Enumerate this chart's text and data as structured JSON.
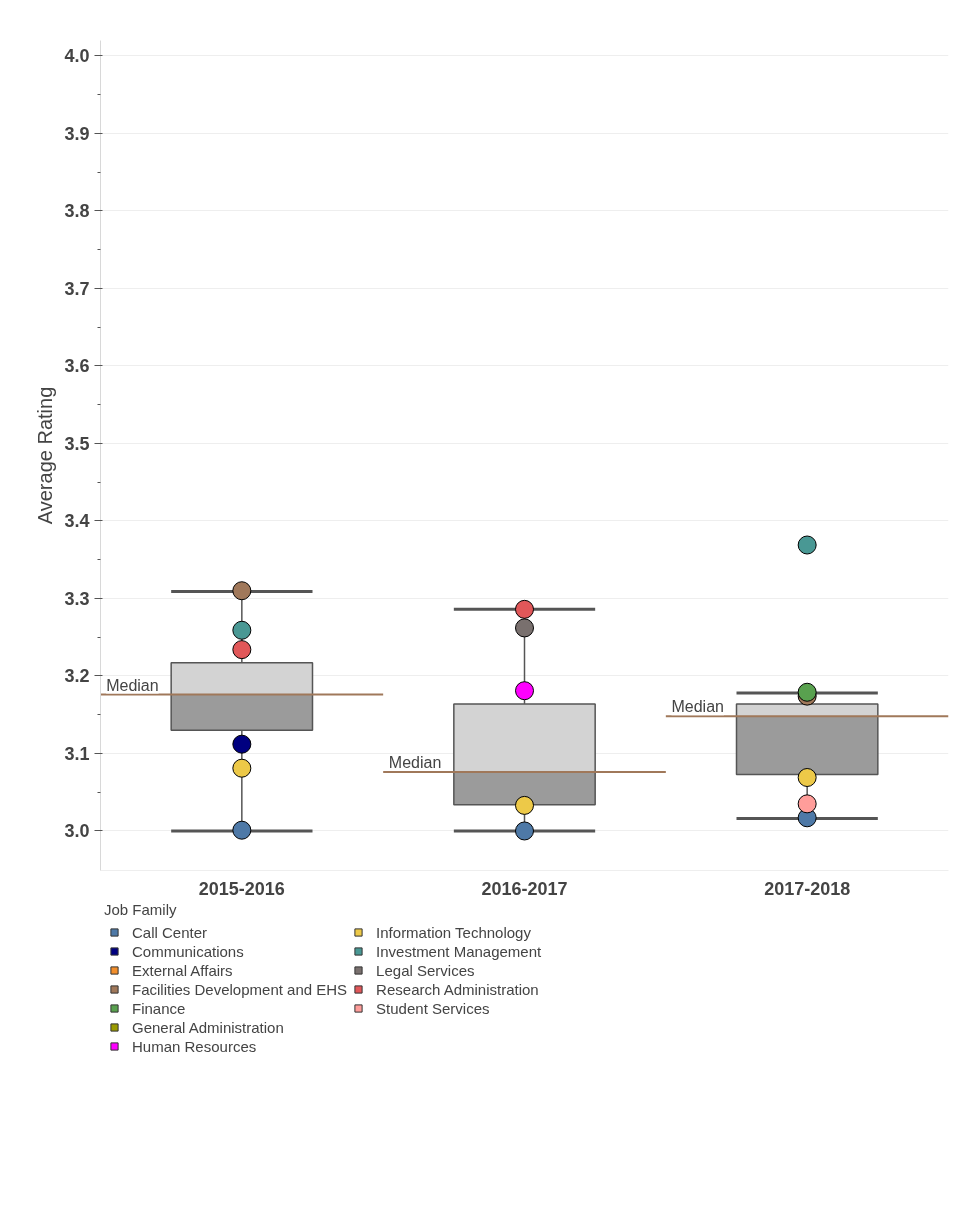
{
  "chart_data": {
    "type": "box",
    "ylabel": "Average Rating",
    "legend_title": "Job Family",
    "categories": [
      "2015-2016",
      "2016-2017",
      "2017-2018"
    ],
    "boxes": [
      {
        "low": 3.0,
        "q1": 3.13,
        "median": 3.176,
        "q3": 3.217,
        "high": 3.309
      },
      {
        "low": 3.0,
        "q1": 3.034,
        "median": 3.076,
        "q3": 3.164,
        "high": 3.286
      },
      {
        "low": 3.016,
        "q1": 3.073,
        "median": 3.148,
        "q3": 3.164,
        "high": 3.178
      }
    ],
    "series": [
      {
        "name": "Call Center",
        "color": "#4e79a7",
        "type": "scatter",
        "x": [
          "2015-2016",
          "2016-2017",
          "2017-2018"
        ],
        "values": [
          3.001,
          3.0,
          3.017
        ]
      },
      {
        "name": "Communications",
        "color": "#000080",
        "type": "scatter",
        "x": [
          "2015-2016"
        ],
        "values": [
          3.112
        ]
      },
      {
        "name": "External Affairs",
        "color": "#f28e2b",
        "type": "scatter",
        "x": [
          "2015-2016",
          "2016-2017",
          "2017-2018"
        ],
        "values": [
          null,
          null,
          null
        ]
      },
      {
        "name": "Facilities Development and EHS",
        "color": "#a0785a",
        "type": "scatter",
        "x": [
          "2015-2016",
          "2017-2018"
        ],
        "values": [
          3.31,
          3.174
        ]
      },
      {
        "name": "Finance",
        "color": "#59a14f",
        "type": "scatter",
        "x": [
          "2017-2018"
        ],
        "values": [
          3.179
        ]
      },
      {
        "name": "General Administration",
        "color": "#9a9a00",
        "type": "scatter",
        "x": [
          "2015-2016",
          "2016-2017",
          "2017-2018"
        ],
        "values": [
          null,
          null,
          null
        ]
      },
      {
        "name": "Human Resources",
        "color": "#ff00ff",
        "type": "scatter",
        "x": [
          "2016-2017"
        ],
        "values": [
          3.181
        ]
      },
      {
        "name": "Information Technology",
        "color": "#edc948",
        "type": "scatter",
        "x": [
          "2015-2016",
          "2016-2017",
          "2017-2018"
        ],
        "values": [
          3.081,
          3.033,
          3.069
        ]
      },
      {
        "name": "Investment Management",
        "color": "#499894",
        "type": "scatter",
        "x": [
          "2015-2016",
          "2017-2018"
        ],
        "values": [
          3.259,
          3.369
        ]
      },
      {
        "name": "Legal Services",
        "color": "#79706e",
        "type": "scatter",
        "x": [
          "2016-2017"
        ],
        "values": [
          3.262
        ]
      },
      {
        "name": "Research Administration",
        "color": "#e15759",
        "type": "scatter",
        "x": [
          "2015-2016",
          "2016-2017"
        ],
        "values": [
          3.234,
          3.286
        ]
      },
      {
        "name": "Student Services",
        "color": "#ff9d9a",
        "type": "scatter",
        "x": [
          "2017-2018"
        ],
        "values": [
          3.035
        ]
      }
    ],
    "annotations": [
      "Median",
      "Median",
      "Median"
    ],
    "ylim": [
      2.949,
      4.02
    ],
    "yticks": [
      {
        "value": 3.0,
        "label": "3.0"
      },
      {
        "value": 3.05,
        "label": null
      },
      {
        "value": 3.1,
        "label": "3.1"
      },
      {
        "value": 3.15,
        "label": null
      },
      {
        "value": 3.2,
        "label": "3.2"
      },
      {
        "value": 3.25,
        "label": null
      },
      {
        "value": 3.3,
        "label": "3.3"
      },
      {
        "value": 3.35,
        "label": null
      },
      {
        "value": 3.4,
        "label": "3.4"
      },
      {
        "value": 3.45,
        "label": null
      },
      {
        "value": 3.5,
        "label": "3.5"
      },
      {
        "value": 3.55,
        "label": null
      },
      {
        "value": 3.6,
        "label": "3.6"
      },
      {
        "value": 3.65,
        "label": null
      },
      {
        "value": 3.7,
        "label": "3.7"
      },
      {
        "value": 3.75,
        "label": null
      },
      {
        "value": 3.8,
        "label": "3.8"
      },
      {
        "value": 3.85,
        "label": null
      },
      {
        "value": 3.9,
        "label": "3.9"
      },
      {
        "value": 3.95,
        "label": null
      },
      {
        "value": 4.0,
        "label": "4.0"
      }
    ],
    "grid": "y",
    "legend": "bottom",
    "marker": "circle"
  }
}
